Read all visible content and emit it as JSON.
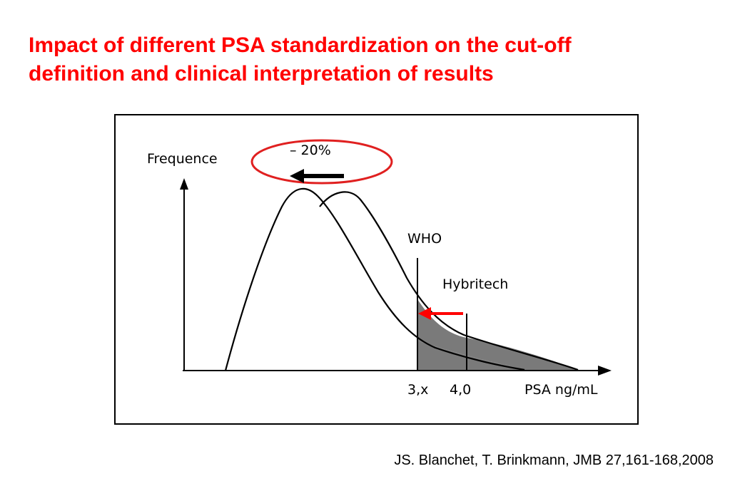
{
  "slide": {
    "title_line1": "Impact of different PSA standardization on the cut-off",
    "title_line2": "definition and clinical interpretation of results",
    "citation": "JS. Blanchet, T. Brinkmann, JMB 27,161-168,2008"
  },
  "figure": {
    "y_axis_label": "Frequence",
    "x_axis_label": "PSA ng/mL",
    "shift_label": "– 20%",
    "cutoff_who_label": "WHO",
    "cutoff_hybritech_label": "Hybritech",
    "tick_who": "3,x",
    "tick_hybritech": "4,0",
    "colors": {
      "title": "#ff0000",
      "ellipse": "#e02020",
      "red_arrow": "#ff0000",
      "shaded_area": "#7a7a7a",
      "curves": "#000000"
    },
    "icons": [
      "black-left-arrow-icon",
      "red-left-arrow-icon"
    ]
  }
}
